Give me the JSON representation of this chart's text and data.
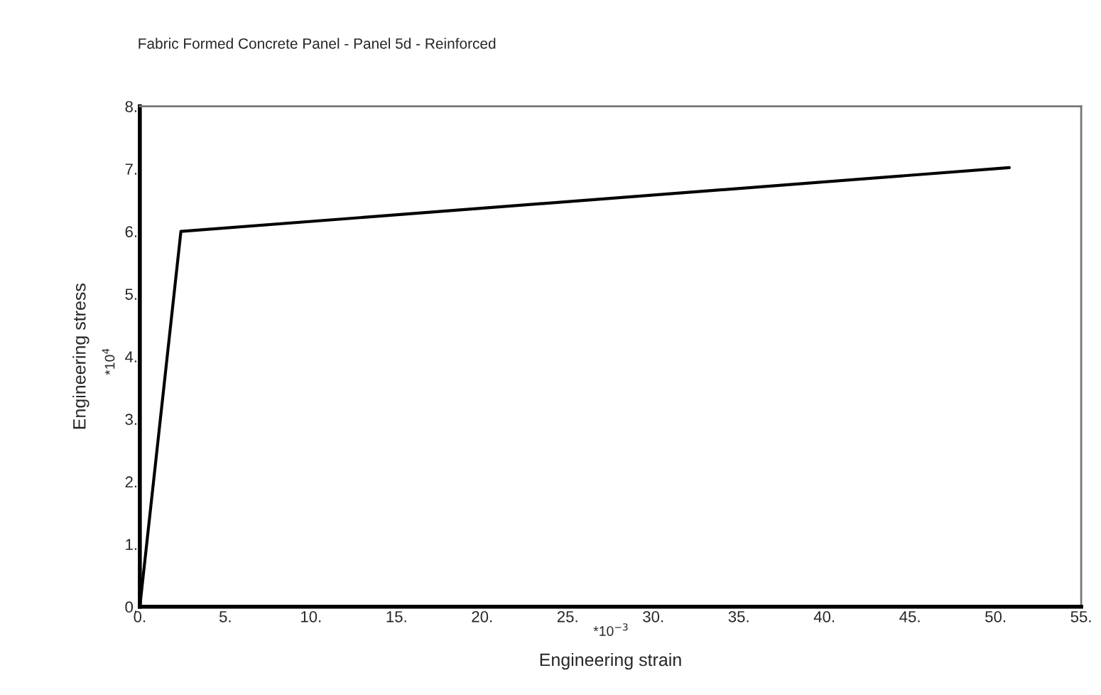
{
  "chart_data": {
    "type": "line",
    "title": "Fabric Formed Concrete Panel - Panel 5d - Reinforced",
    "xlabel": "Engineering strain",
    "ylabel": "Engineering stress",
    "annotations": [
      "*10$^{−3}$",
      "*10$^{4}$"
    ],
    "x": [
      0,
      2.4,
      50.8
    ],
    "series": [
      {
        "color": "#000000",
        "values": [
          0,
          6.0,
          7.02
        ]
      }
    ],
    "xlim": [
      0,
      55
    ],
    "ylim": [
      0,
      8
    ],
    "xticks": [
      {
        "value": 0,
        "label": "0."
      },
      {
        "value": 5,
        "label": "5."
      },
      {
        "value": 10,
        "label": "10."
      },
      {
        "value": 15,
        "label": "15."
      },
      {
        "value": 20,
        "label": "20."
      },
      {
        "value": 25,
        "label": "25."
      },
      {
        "value": 30,
        "label": "30."
      },
      {
        "value": 35,
        "label": "35."
      },
      {
        "value": 40,
        "label": "40."
      },
      {
        "value": 45,
        "label": "45."
      },
      {
        "value": 50,
        "label": "50."
      },
      {
        "value": 55,
        "label": "55."
      }
    ],
    "yticks": [
      {
        "value": 0,
        "label": "0."
      },
      {
        "value": 1,
        "label": "1."
      },
      {
        "value": 2,
        "label": "2."
      },
      {
        "value": 3,
        "label": "3."
      },
      {
        "value": 4,
        "label": "4."
      },
      {
        "value": 5,
        "label": "5."
      },
      {
        "value": 6,
        "label": "6."
      },
      {
        "value": 7,
        "label": "7."
      },
      {
        "value": 8,
        "label": "8."
      }
    ],
    "grid": false,
    "legend": false,
    "marker": "none",
    "line_style": "solid"
  }
}
